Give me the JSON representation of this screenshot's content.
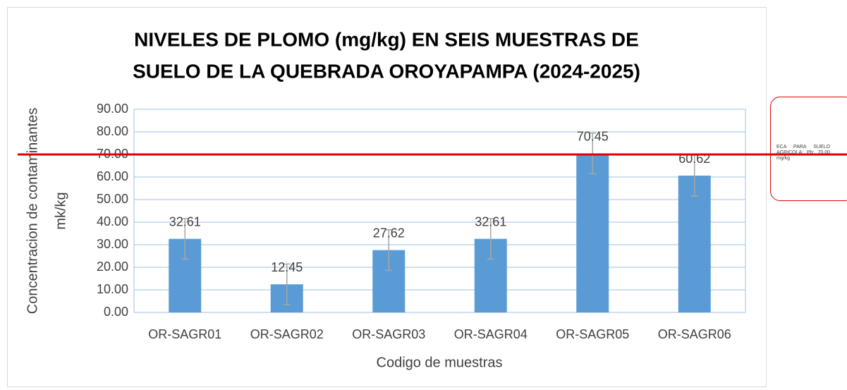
{
  "chart_data": {
    "type": "bar",
    "title": [
      "NIVELES DE PLOMO (mg/kg) EN SEIS MUESTRAS DE",
      "SUELO DE LA QUEBRADA OROYAPAMPA (2024-2025)"
    ],
    "y_label": [
      "Concentracion de contaminantes",
      "mk/kg"
    ],
    "x_label": "Codigo de muestras",
    "categories": [
      "OR-SAGR01",
      "OR-SAGR02",
      "OR-SAGR03",
      "OR-SAGR04",
      "OR-SAGR05",
      "OR-SAGR06"
    ],
    "values": [
      32.61,
      12.45,
      27.62,
      32.61,
      70.45,
      60.62
    ],
    "errors": [
      9,
      9,
      9,
      9,
      9,
      9
    ],
    "color": "#5b9bd5",
    "error_color": "#a6a6a6",
    "ylim": [
      0,
      90
    ],
    "yticks": [
      {
        "value": 0,
        "label": "0.00"
      },
      {
        "value": 10,
        "label": "10.00"
      },
      {
        "value": 20,
        "label": "20.00"
      },
      {
        "value": 30,
        "label": "30.00"
      },
      {
        "value": 40,
        "label": "40.00"
      },
      {
        "value": 50,
        "label": "50.00"
      },
      {
        "value": 60,
        "label": "60.00"
      },
      {
        "value": 70,
        "label": "70.00"
      },
      {
        "value": 80,
        "label": "80.00"
      },
      {
        "value": 90,
        "label": "90.00"
      }
    ],
    "grid": true,
    "reference_line": {
      "value": 70,
      "color": "#e00000",
      "label": "ECA PARA SUELO AGRICOLA: Pb: 70.00 mg/kg"
    }
  }
}
